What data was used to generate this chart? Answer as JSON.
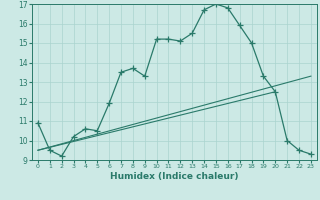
{
  "xlabel": "Humidex (Indice chaleur)",
  "background_color": "#cce9e5",
  "grid_color": "#aad4cf",
  "line_color": "#2a7a6a",
  "xlim": [
    -0.5,
    23.5
  ],
  "ylim": [
    9,
    17
  ],
  "xticks": [
    0,
    1,
    2,
    3,
    4,
    5,
    6,
    7,
    8,
    9,
    10,
    11,
    12,
    13,
    14,
    15,
    16,
    17,
    18,
    19,
    20,
    21,
    22,
    23
  ],
  "yticks": [
    9,
    10,
    11,
    12,
    13,
    14,
    15,
    16,
    17
  ],
  "line1_x": [
    0,
    1,
    2,
    3,
    4,
    5,
    6,
    7,
    8,
    9,
    10,
    11,
    12,
    13,
    14,
    15,
    16,
    17,
    18,
    19,
    20,
    21,
    22,
    23
  ],
  "line1_y": [
    10.9,
    9.5,
    9.2,
    10.2,
    10.6,
    10.5,
    11.9,
    13.5,
    13.7,
    13.3,
    15.2,
    15.2,
    15.1,
    15.5,
    16.7,
    17.0,
    16.8,
    15.9,
    15.0,
    13.3,
    12.5,
    10.0,
    9.5,
    9.3
  ],
  "line2_x": [
    0,
    23
  ],
  "line2_y": [
    9.5,
    13.3
  ],
  "line3_x": [
    0,
    20
  ],
  "line3_y": [
    9.5,
    12.5
  ]
}
